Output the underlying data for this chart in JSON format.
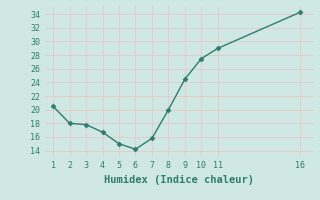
{
  "x": [
    1,
    2,
    3,
    4,
    5,
    6,
    7,
    8,
    9,
    10,
    11,
    16
  ],
  "y": [
    20.5,
    18.0,
    17.8,
    16.7,
    15.0,
    14.2,
    15.8,
    20.0,
    24.5,
    27.5,
    29.0,
    34.3
  ],
  "line_color": "#2e7d6e",
  "marker": "D",
  "marker_size": 2.5,
  "bg_color": "#cfe8e4",
  "grid_color": "#e8c8c8",
  "xlabel": "Humidex (Indice chaleur)",
  "xlim": [
    0.5,
    16.8
  ],
  "ylim": [
    13.2,
    35.2
  ],
  "xticks": [
    1,
    2,
    3,
    4,
    5,
    6,
    7,
    8,
    9,
    10,
    11,
    16
  ],
  "yticks": [
    14,
    16,
    18,
    20,
    22,
    24,
    26,
    28,
    30,
    32,
    34
  ],
  "tick_fontsize": 6,
  "xlabel_fontsize": 7.5,
  "line_width": 1.0
}
